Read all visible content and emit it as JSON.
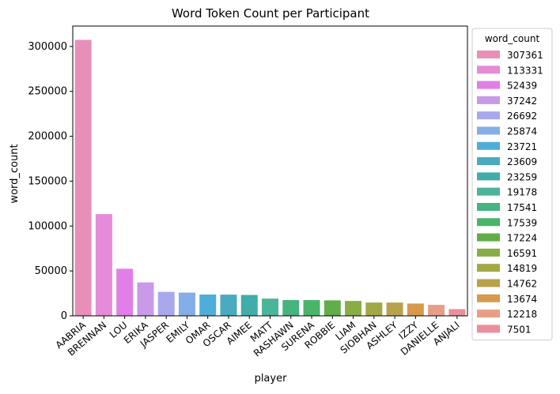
{
  "chart_data": {
    "type": "bar",
    "title": "Word Token Count per Participant",
    "xlabel": "player",
    "ylabel": "word_count",
    "ylim": [
      0,
      322739
    ],
    "yticks": [
      0,
      50000,
      100000,
      150000,
      200000,
      250000,
      300000
    ],
    "grid": false,
    "legend_title": "word_count",
    "legend_position": "right, outside plot",
    "categories": [
      "AABRIA",
      "BRENNAN",
      "LOU",
      "ERIKA",
      "JASPER",
      "EMILY",
      "OMAR",
      "OSCAR",
      "AIMEE",
      "MATT",
      "RASHAWN",
      "SURENA",
      "ROBBIE",
      "LIAM",
      "SIOBHAN",
      "ASHLEY",
      "IZZY",
      "DANIELLE",
      "ANJALI"
    ],
    "values": [
      307361,
      113331,
      52439,
      37242,
      26692,
      25874,
      23721,
      23609,
      23259,
      19178,
      17541,
      17539,
      17224,
      16591,
      14819,
      14762,
      13674,
      12218,
      7501
    ],
    "colors": [
      "#e88fb8",
      "#e58bd8",
      "#e27ee8",
      "#c89ae8",
      "#aaa8ec",
      "#85ade8",
      "#4eaed9",
      "#4aaac0",
      "#40ada8",
      "#4cb497",
      "#45b47f",
      "#4ab46a",
      "#62ad48",
      "#89ad46",
      "#a3a846",
      "#b7a24e",
      "#d79a4c",
      "#e79e86",
      "#ea8f9b"
    ]
  }
}
